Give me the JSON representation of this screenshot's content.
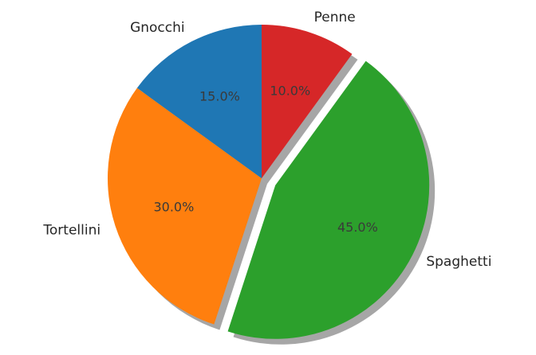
{
  "chart_data": {
    "type": "pie",
    "slices": [
      {
        "label": "Penne",
        "value": 10.0,
        "pct_text": "10.0%",
        "color": "#d62728",
        "explode": false
      },
      {
        "label": "Spaghetti",
        "value": 45.0,
        "pct_text": "45.0%",
        "color": "#2ca02c",
        "explode": true
      },
      {
        "label": "Tortellini",
        "value": 30.0,
        "pct_text": "30.0%",
        "color": "#ff7f0e",
        "explode": false
      },
      {
        "label": "Gnocchi",
        "value": 15.0,
        "pct_text": "15.0%",
        "color": "#1f77b4",
        "explode": false
      }
    ],
    "start_angle_deg": 90,
    "direction": "clockwise",
    "shadow": true,
    "legend": "none"
  }
}
